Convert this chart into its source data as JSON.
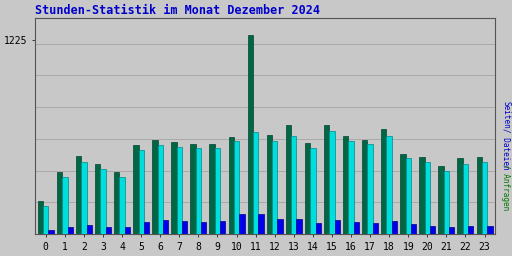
{
  "title": "Stunden-Statistik im Monat Dezember 2024",
  "bg_color": "#c8c8c8",
  "title_color": "#0000cc",
  "bar_green": "#006644",
  "bar_cyan": "#00dddd",
  "bar_blue": "#0000ee",
  "edge_green": "#004433",
  "edge_cyan": "#008888",
  "edge_blue": "#000088",
  "hours": [
    0,
    1,
    2,
    3,
    4,
    5,
    6,
    7,
    8,
    9,
    10,
    11,
    12,
    13,
    14,
    15,
    16,
    17,
    18,
    19,
    20,
    21,
    22,
    23
  ],
  "seiten": [
    210,
    390,
    490,
    445,
    390,
    560,
    595,
    580,
    570,
    568,
    615,
    1255,
    625,
    685,
    575,
    685,
    620,
    595,
    660,
    505,
    488,
    430,
    480,
    488
  ],
  "dateien": [
    175,
    360,
    455,
    410,
    360,
    530,
    562,
    550,
    540,
    540,
    588,
    645,
    588,
    618,
    540,
    650,
    590,
    568,
    618,
    478,
    458,
    398,
    440,
    458
  ],
  "anfragen": [
    28,
    48,
    58,
    48,
    43,
    78,
    88,
    83,
    78,
    83,
    128,
    128,
    93,
    98,
    73,
    88,
    78,
    73,
    83,
    63,
    53,
    48,
    53,
    53
  ],
  "ylim": [
    0,
    1360
  ],
  "grid_vals": [
    200,
    400,
    600,
    800,
    1000,
    1200
  ],
  "ytick_val": 1225,
  "grid_color": "#aaaaaa",
  "ylabel_seiten": "Seiten",
  "ylabel_dateien": "/ Dateien",
  "ylabel_anfragen": "/ Anfragen",
  "ylabel_color_sd": "#0000cc",
  "ylabel_color_a": "#007700"
}
